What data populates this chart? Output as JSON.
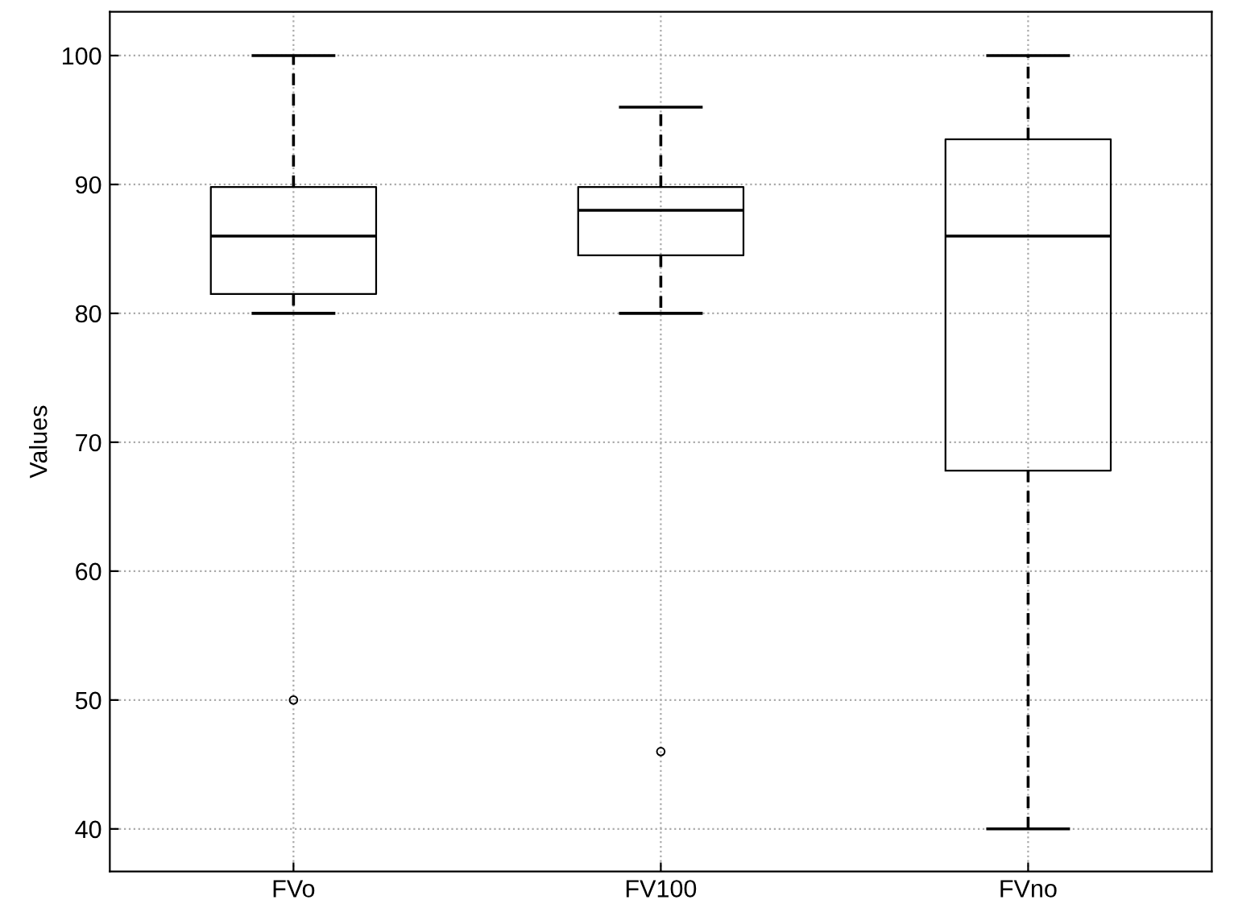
{
  "chart_data": {
    "type": "box",
    "ylabel": "Values",
    "categories": [
      "FVo",
      "FV100",
      "FVno"
    ],
    "boxes": [
      {
        "low": 80,
        "q1": 81.5,
        "median": 86,
        "q3": 89.8,
        "high": 100,
        "outliers": [
          50
        ]
      },
      {
        "low": 80,
        "q1": 84.5,
        "median": 88,
        "q3": 89.8,
        "high": 96,
        "outliers": [
          46
        ]
      },
      {
        "low": 40,
        "q1": 67.8,
        "median": 86,
        "q3": 93.5,
        "high": 100
      }
    ],
    "ylim": [
      36.7,
      103.4
    ],
    "yticks": [
      40,
      50,
      60,
      70,
      80,
      90,
      100
    ],
    "grid": true,
    "line_style": "dashed"
  }
}
